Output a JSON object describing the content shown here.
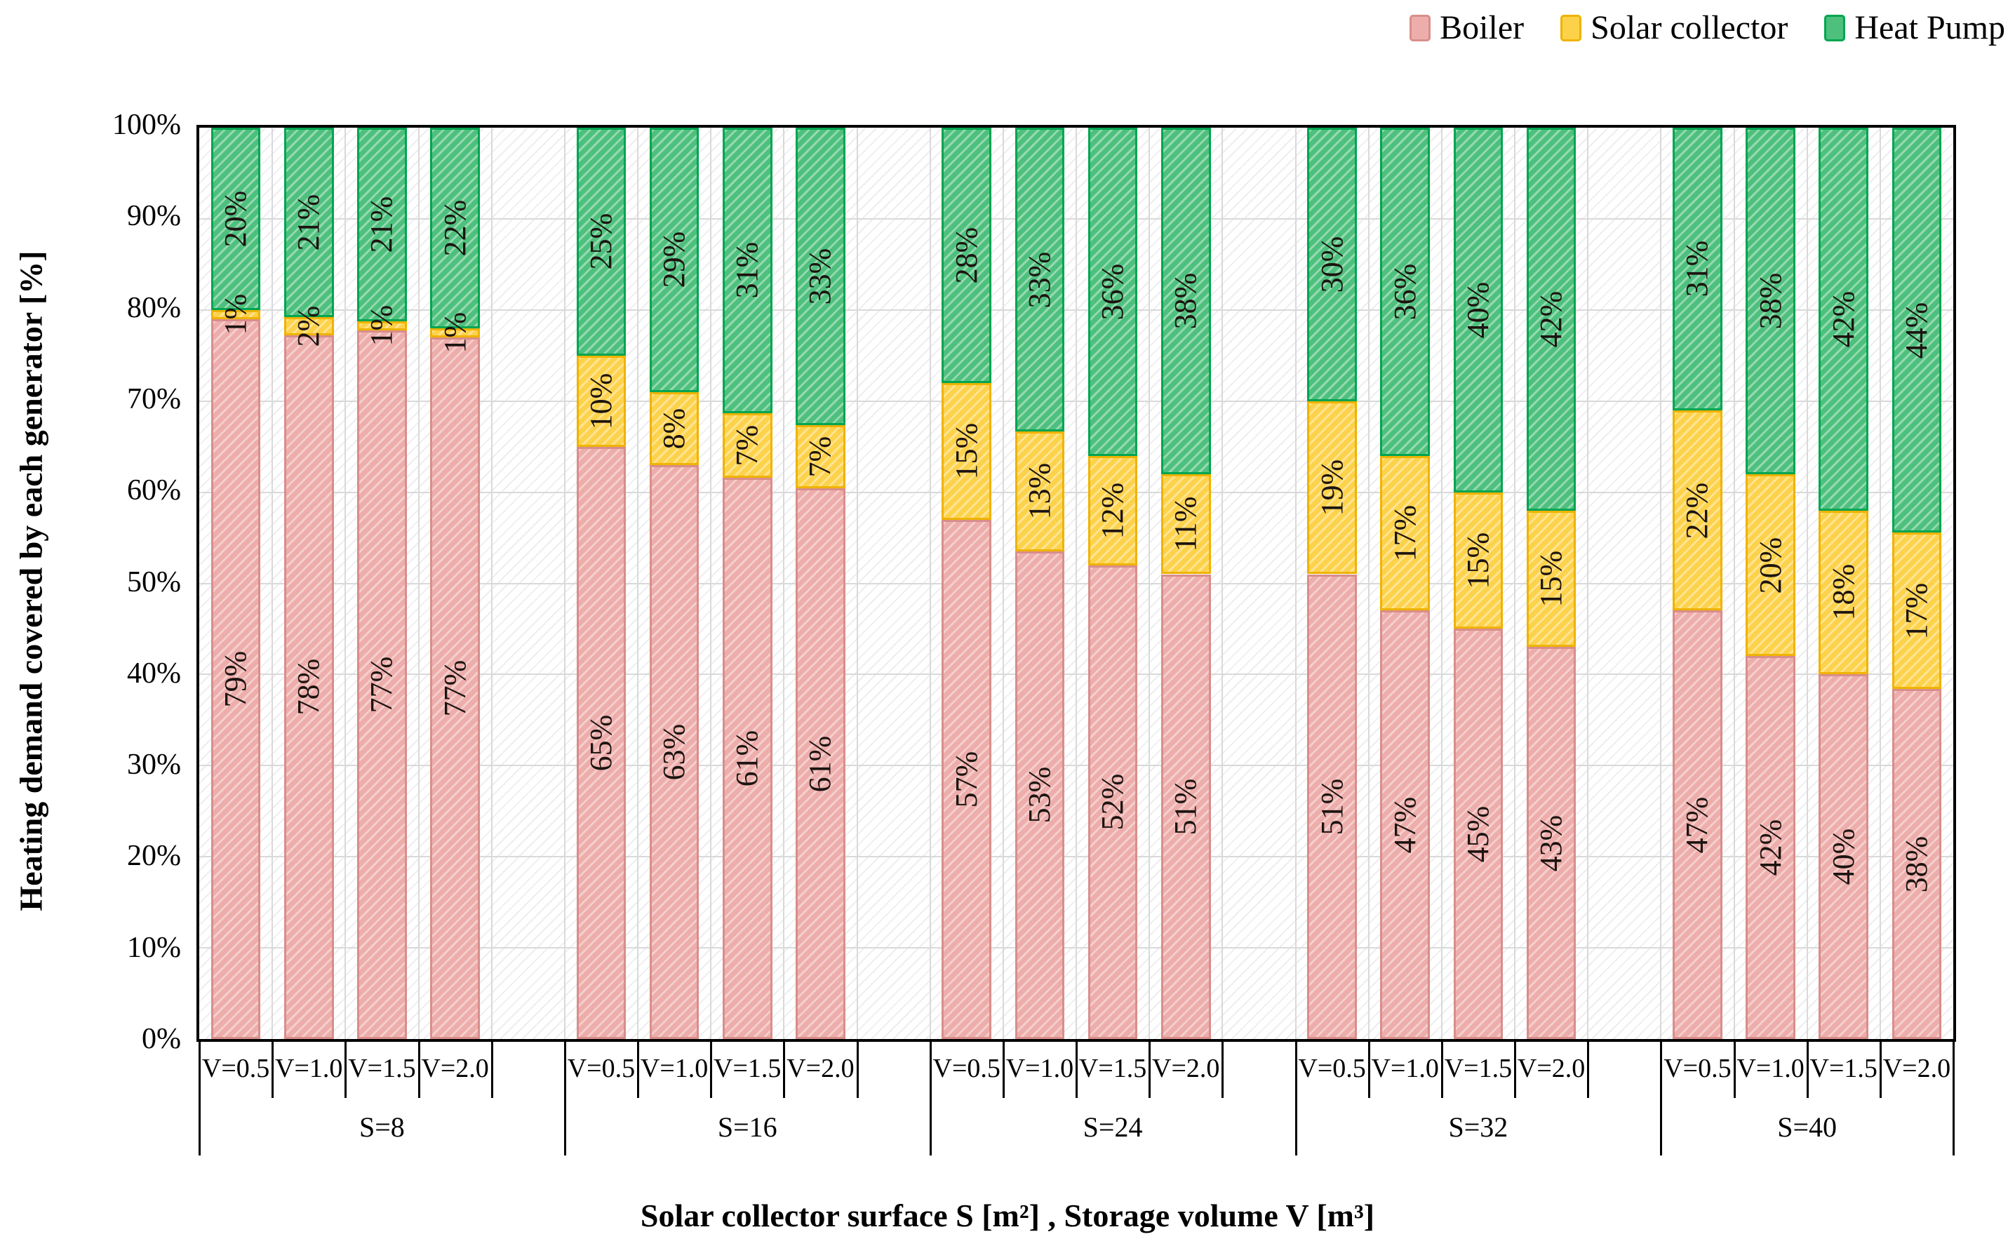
{
  "chart_data": {
    "type": "bar",
    "subtype": "stacked-percent-columns",
    "title": "",
    "xlabel": "Solar collector surface S [m²] , Storage volume V [m³]",
    "ylabel": "Heating demand covered by each generator [%]",
    "ylim": [
      0,
      100
    ],
    "y_tick_step": 10,
    "y_tick_labels": [
      "0%",
      "10%",
      "20%",
      "30%",
      "40%",
      "50%",
      "60%",
      "70%",
      "80%",
      "90%",
      "100%"
    ],
    "grid": "light gray horizontal lines every 10% and vertical lines at every category slot",
    "legend_position": "top-right",
    "series_names": [
      "Boiler",
      "Solar collector",
      "Heat Pump"
    ],
    "data_label_format": "{value}%",
    "colors": {
      "boiler_fill": "#edadab",
      "boiler_border": "#d88e8b",
      "solar_fill": "#fdd24b",
      "solar_border": "#efb301",
      "heat_pump_fill": "#4ec07d",
      "heat_pump_border": "#00a551",
      "gridline": "#d9d9d9",
      "axis": "#000000",
      "label_text": "#1c1410"
    },
    "groups": [
      {
        "label": "S=8",
        "categories": [
          "V=0.5",
          "V=1.0",
          "V=1.5",
          "V=2.0"
        ],
        "series": [
          {
            "name": "Boiler",
            "values": [
              79,
              78,
              77,
              77
            ]
          },
          {
            "name": "Solar collector",
            "values": [
              1,
              2,
              1,
              1
            ]
          },
          {
            "name": "Heat Pump",
            "values": [
              20,
              21,
              21,
              22
            ]
          }
        ]
      },
      {
        "label": "S=16",
        "categories": [
          "V=0.5",
          "V=1.0",
          "V=1.5",
          "V=2.0"
        ],
        "series": [
          {
            "name": "Boiler",
            "values": [
              65,
              63,
              61,
              61
            ]
          },
          {
            "name": "Solar collector",
            "values": [
              10,
              8,
              7,
              7
            ]
          },
          {
            "name": "Heat Pump",
            "values": [
              25,
              29,
              31,
              33
            ]
          }
        ]
      },
      {
        "label": "S=24",
        "categories": [
          "V=0.5",
          "V=1.0",
          "V=1.5",
          "V=2.0"
        ],
        "series": [
          {
            "name": "Boiler",
            "values": [
              57,
              53,
              52,
              51
            ]
          },
          {
            "name": "Solar collector",
            "values": [
              15,
              13,
              12,
              11
            ]
          },
          {
            "name": "Heat Pump",
            "values": [
              28,
              33,
              36,
              38
            ]
          }
        ]
      },
      {
        "label": "S=32",
        "categories": [
          "V=0.5",
          "V=1.0",
          "V=1.5",
          "V=2.0"
        ],
        "series": [
          {
            "name": "Boiler",
            "values": [
              51,
              47,
              45,
              43
            ]
          },
          {
            "name": "Solar collector",
            "values": [
              19,
              17,
              15,
              15
            ]
          },
          {
            "name": "Heat Pump",
            "values": [
              30,
              36,
              40,
              42
            ]
          }
        ]
      },
      {
        "label": "S=40",
        "categories": [
          "V=0.5",
          "V=1.0",
          "V=1.5",
          "V=2.0"
        ],
        "series": [
          {
            "name": "Boiler",
            "values": [
              47,
              42,
              40,
              38
            ]
          },
          {
            "name": "Solar collector",
            "values": [
              22,
              20,
              18,
              17
            ]
          },
          {
            "name": "Heat Pump",
            "values": [
              31,
              38,
              42,
              44
            ]
          }
        ]
      }
    ]
  }
}
